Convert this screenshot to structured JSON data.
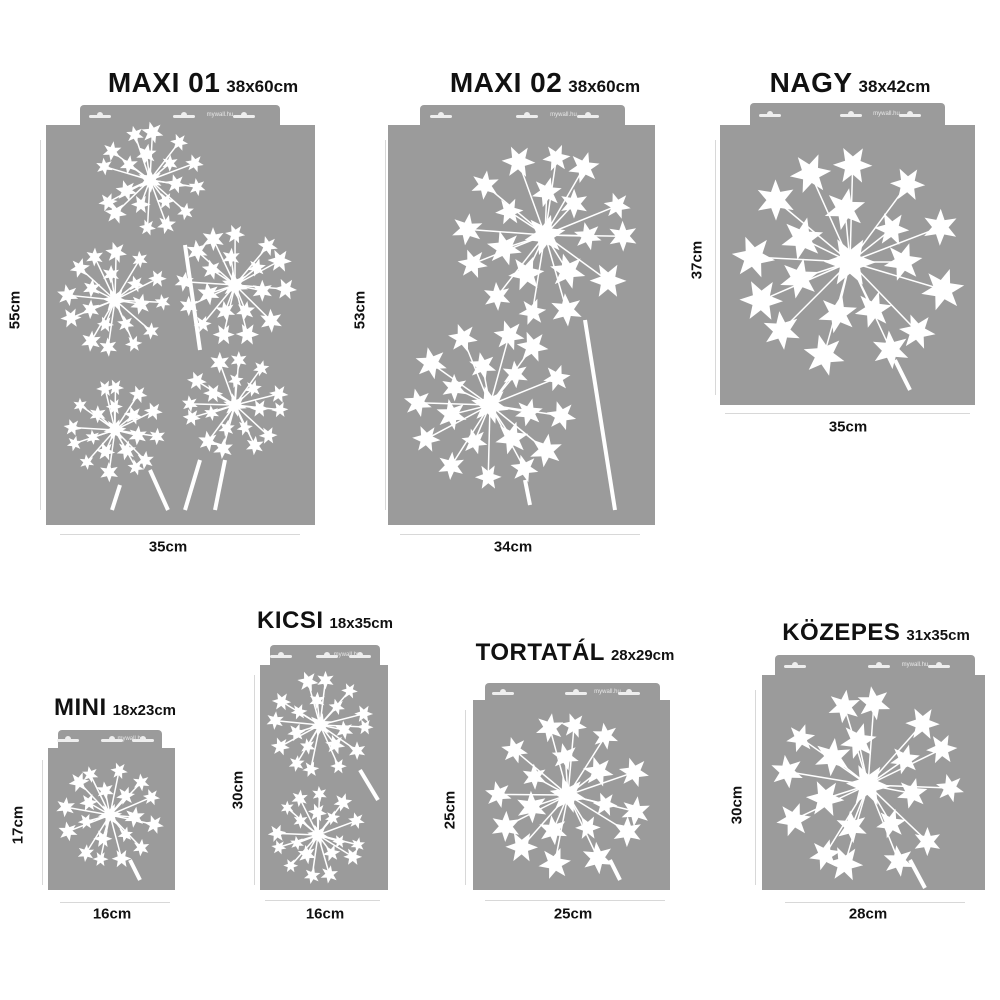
{
  "brand": "mywall.hu",
  "colors": {
    "stencil": "#9b9b9b",
    "flower": "#ffffff",
    "text": "#111111"
  },
  "products": [
    {
      "name": "MAXI 01",
      "size": "38x60cm",
      "height": "55cm",
      "width": "35cm"
    },
    {
      "name": "MAXI 02",
      "size": "38x60cm",
      "height": "53cm",
      "width": "34cm"
    },
    {
      "name": "NAGY",
      "size": "38x42cm",
      "height": "37cm",
      "width": "35cm"
    },
    {
      "name": "MINI",
      "size": "18x23cm",
      "height": "17cm",
      "width": "16cm"
    },
    {
      "name": "KICSI",
      "size": "18x35cm",
      "height": "30cm",
      "width": "16cm"
    },
    {
      "name": "TORTATÁL",
      "size": "28x29cm",
      "height": "25cm",
      "width": "25cm"
    },
    {
      "name": "KÖZEPES",
      "size": "31x35cm",
      "height": "30cm",
      "width": "28cm"
    }
  ]
}
